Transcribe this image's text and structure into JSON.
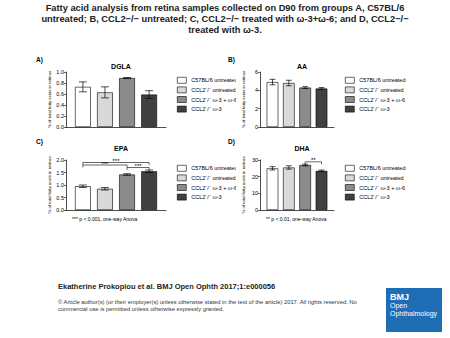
{
  "title": "Fatty acid analysis from retina samples collected on D90 from groups A, C57BL/6 untreated; B, CCL2−/− untreated; C, CCL2−/− treated with ω-3+ω-6; and D, CCL2−/− treated with ω-3.",
  "chart_data": [
    {
      "type": "bar",
      "label": "A)",
      "title": "DGLA",
      "y_label": "% of total fatty acids in retinas",
      "categories": [
        null
      ],
      "series": [
        {
          "name": "C57BL/6 untreated",
          "color": "#ffffff",
          "values": [
            0.73
          ],
          "errors": [
            0.09
          ]
        },
        {
          "name": "CCL2⁻/⁻ untreated",
          "color": "#d9d9d9",
          "values": [
            0.63
          ],
          "errors": [
            0.1
          ]
        },
        {
          "name": "CCL2⁻/⁻ ω-3 + ω-6",
          "color": "#8c8c8c",
          "values": [
            0.89
          ],
          "errors": [
            0.01
          ]
        },
        {
          "name": "CCL2⁻/⁻ ω-3",
          "color": "#404040",
          "values": [
            0.59
          ],
          "errors": [
            0.07
          ]
        }
      ],
      "ylim": [
        0,
        1.0
      ],
      "yticks": [
        {
          "value": 0,
          "label": "0.0"
        },
        {
          "value": 0.2,
          "label": "0.2"
        },
        {
          "value": 0.4,
          "label": "0.4"
        },
        {
          "value": 0.6,
          "label": "0.6"
        },
        {
          "value": 0.8,
          "label": "0.8"
        },
        {
          "value": 1.0,
          "label": "1.0"
        }
      ],
      "grid": false,
      "legend": "right",
      "tick_labels": "y"
    },
    {
      "type": "bar",
      "label": "B)",
      "title": "AA",
      "y_label": "% of total fatty acids in retinas",
      "categories": [
        null
      ],
      "series": [
        {
          "name": "C57BL/6 untreated",
          "color": "#ffffff",
          "values": [
            4.9
          ],
          "errors": [
            0.3
          ]
        },
        {
          "name": "CCL2⁻/⁻ untreated",
          "color": "#d9d9d9",
          "values": [
            4.8
          ],
          "errors": [
            0.3
          ]
        },
        {
          "name": "CCL2⁻/⁻ ω-3 + ω-6",
          "color": "#8c8c8c",
          "values": [
            4.3
          ],
          "errors": [
            0.1
          ]
        },
        {
          "name": "CCL2⁻/⁻ ω-3",
          "color": "#404040",
          "values": [
            4.2
          ],
          "errors": [
            0.1
          ]
        }
      ],
      "ylim": [
        0,
        6
      ],
      "yticks": [
        0,
        2,
        4,
        6
      ],
      "grid": false,
      "legend": "right",
      "tick_labels": "y"
    },
    {
      "type": "bar",
      "label": "C)",
      "title": "EPA",
      "y_label": "% of total fatty acids in retinas",
      "categories": [
        null
      ],
      "series": [
        {
          "name": "C57BL/6 untreated",
          "color": "#ffffff",
          "values": [
            0.95
          ],
          "errors": [
            0.05
          ]
        },
        {
          "name": "CCL2⁻/⁻ untreated",
          "color": "#d9d9d9",
          "values": [
            0.85
          ],
          "errors": [
            0.05
          ]
        },
        {
          "name": "CCL2⁻/⁻ ω-3 + ω-6",
          "color": "#8c8c8c",
          "values": [
            1.42
          ],
          "errors": [
            0.03
          ]
        },
        {
          "name": "CCL2⁻/⁻ ω-3",
          "color": "#404040",
          "values": [
            1.55
          ],
          "errors": [
            0.05
          ]
        }
      ],
      "ylim": [
        0,
        2.0
      ],
      "yticks": [
        {
          "value": 0,
          "label": "0.0"
        },
        {
          "value": 0.5,
          "label": "0.5"
        },
        {
          "value": 1.0,
          "label": "1.0"
        },
        {
          "value": 1.5,
          "label": "1.5"
        },
        {
          "value": 2.0,
          "label": "2.0"
        }
      ],
      "significance": [
        {
          "between": [
            2,
            3
          ],
          "text": "***"
        },
        {
          "between": [
            0,
            2
          ],
          "text": "***"
        },
        {
          "between": [
            0,
            3
          ],
          "text": "***"
        }
      ],
      "footnote": "*** p < 0.001, one-way Anova",
      "grid": false,
      "legend": "right",
      "tick_labels": "y"
    },
    {
      "type": "bar",
      "label": "D)",
      "title": "DHA",
      "y_label": "% of total fatty acids in retinas",
      "categories": [
        null
      ],
      "series": [
        {
          "name": "C57BL/6 untreated",
          "color": "#ffffff",
          "values": [
            25
          ],
          "errors": [
            1
          ]
        },
        {
          "name": "CCL2⁻/⁻ untreated",
          "color": "#d9d9d9",
          "values": [
            25.5
          ],
          "errors": [
            1
          ]
        },
        {
          "name": "CCL2⁻/⁻ ω-3 + ω-6",
          "color": "#8c8c8c",
          "values": [
            27
          ],
          "errors": [
            0.5
          ]
        },
        {
          "name": "CCL2⁻/⁻ ω-3",
          "color": "#404040",
          "values": [
            23.5
          ],
          "errors": [
            0.5
          ]
        }
      ],
      "ylim": [
        0,
        30
      ],
      "yticks": [
        0,
        10,
        20,
        30
      ],
      "significance": [
        {
          "between": [
            2,
            3
          ],
          "text": "**"
        }
      ],
      "footnote": "** p < 0.01, one-way Anova",
      "grid": false,
      "legend": "right",
      "tick_labels": "y"
    }
  ],
  "footer": {
    "citation": "Ekatherine Prokopiou et al. BMJ Open Ophth 2017;1:e000056",
    "copyright": "© Article author(s) (or their employer(s) unless otherwise stated in the text of the article) 2017. All rights reserved. No commercial use is permitted unless otherwise expressly granted.",
    "logo": [
      "BMJ",
      "Open",
      "Ophthalmology"
    ]
  }
}
